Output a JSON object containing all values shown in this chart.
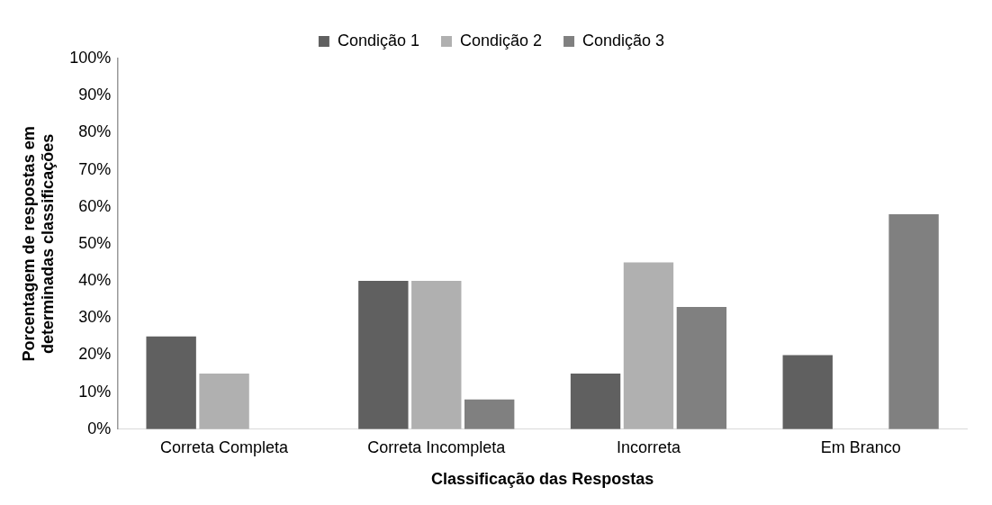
{
  "chart_data": {
    "type": "bar",
    "xlabel": "Classificação das Respostas",
    "ylabel": "Porcentagem de respostas em determinadas classificações",
    "categories": [
      "Correta Completa",
      "Correta Incompleta",
      "Incorreta",
      "Em Branco"
    ],
    "series": [
      {
        "name": "Condição 1",
        "color": "#606060",
        "values": [
          25,
          40,
          15,
          20
        ]
      },
      {
        "name": "Condição 2",
        "color": "#b0b0b0",
        "values": [
          15,
          40,
          45,
          0
        ]
      },
      {
        "name": "Condição 3",
        "color": "#808080",
        "values": [
          0,
          8,
          33,
          58
        ]
      }
    ],
    "ylim": [
      0,
      100
    ],
    "yticks": [
      {
        "value": 0,
        "label": "0%"
      },
      {
        "value": 10,
        "label": "10%"
      },
      {
        "value": 20,
        "label": "20%"
      },
      {
        "value": 30,
        "label": "30%"
      },
      {
        "value": 40,
        "label": "40%"
      },
      {
        "value": 50,
        "label": "50%"
      },
      {
        "value": 60,
        "label": "60%"
      },
      {
        "value": 70,
        "label": "70%"
      },
      {
        "value": 80,
        "label": "80%"
      },
      {
        "value": 90,
        "label": "90%"
      },
      {
        "value": 100,
        "label": "100%"
      }
    ],
    "grid": false,
    "legend": "top"
  }
}
